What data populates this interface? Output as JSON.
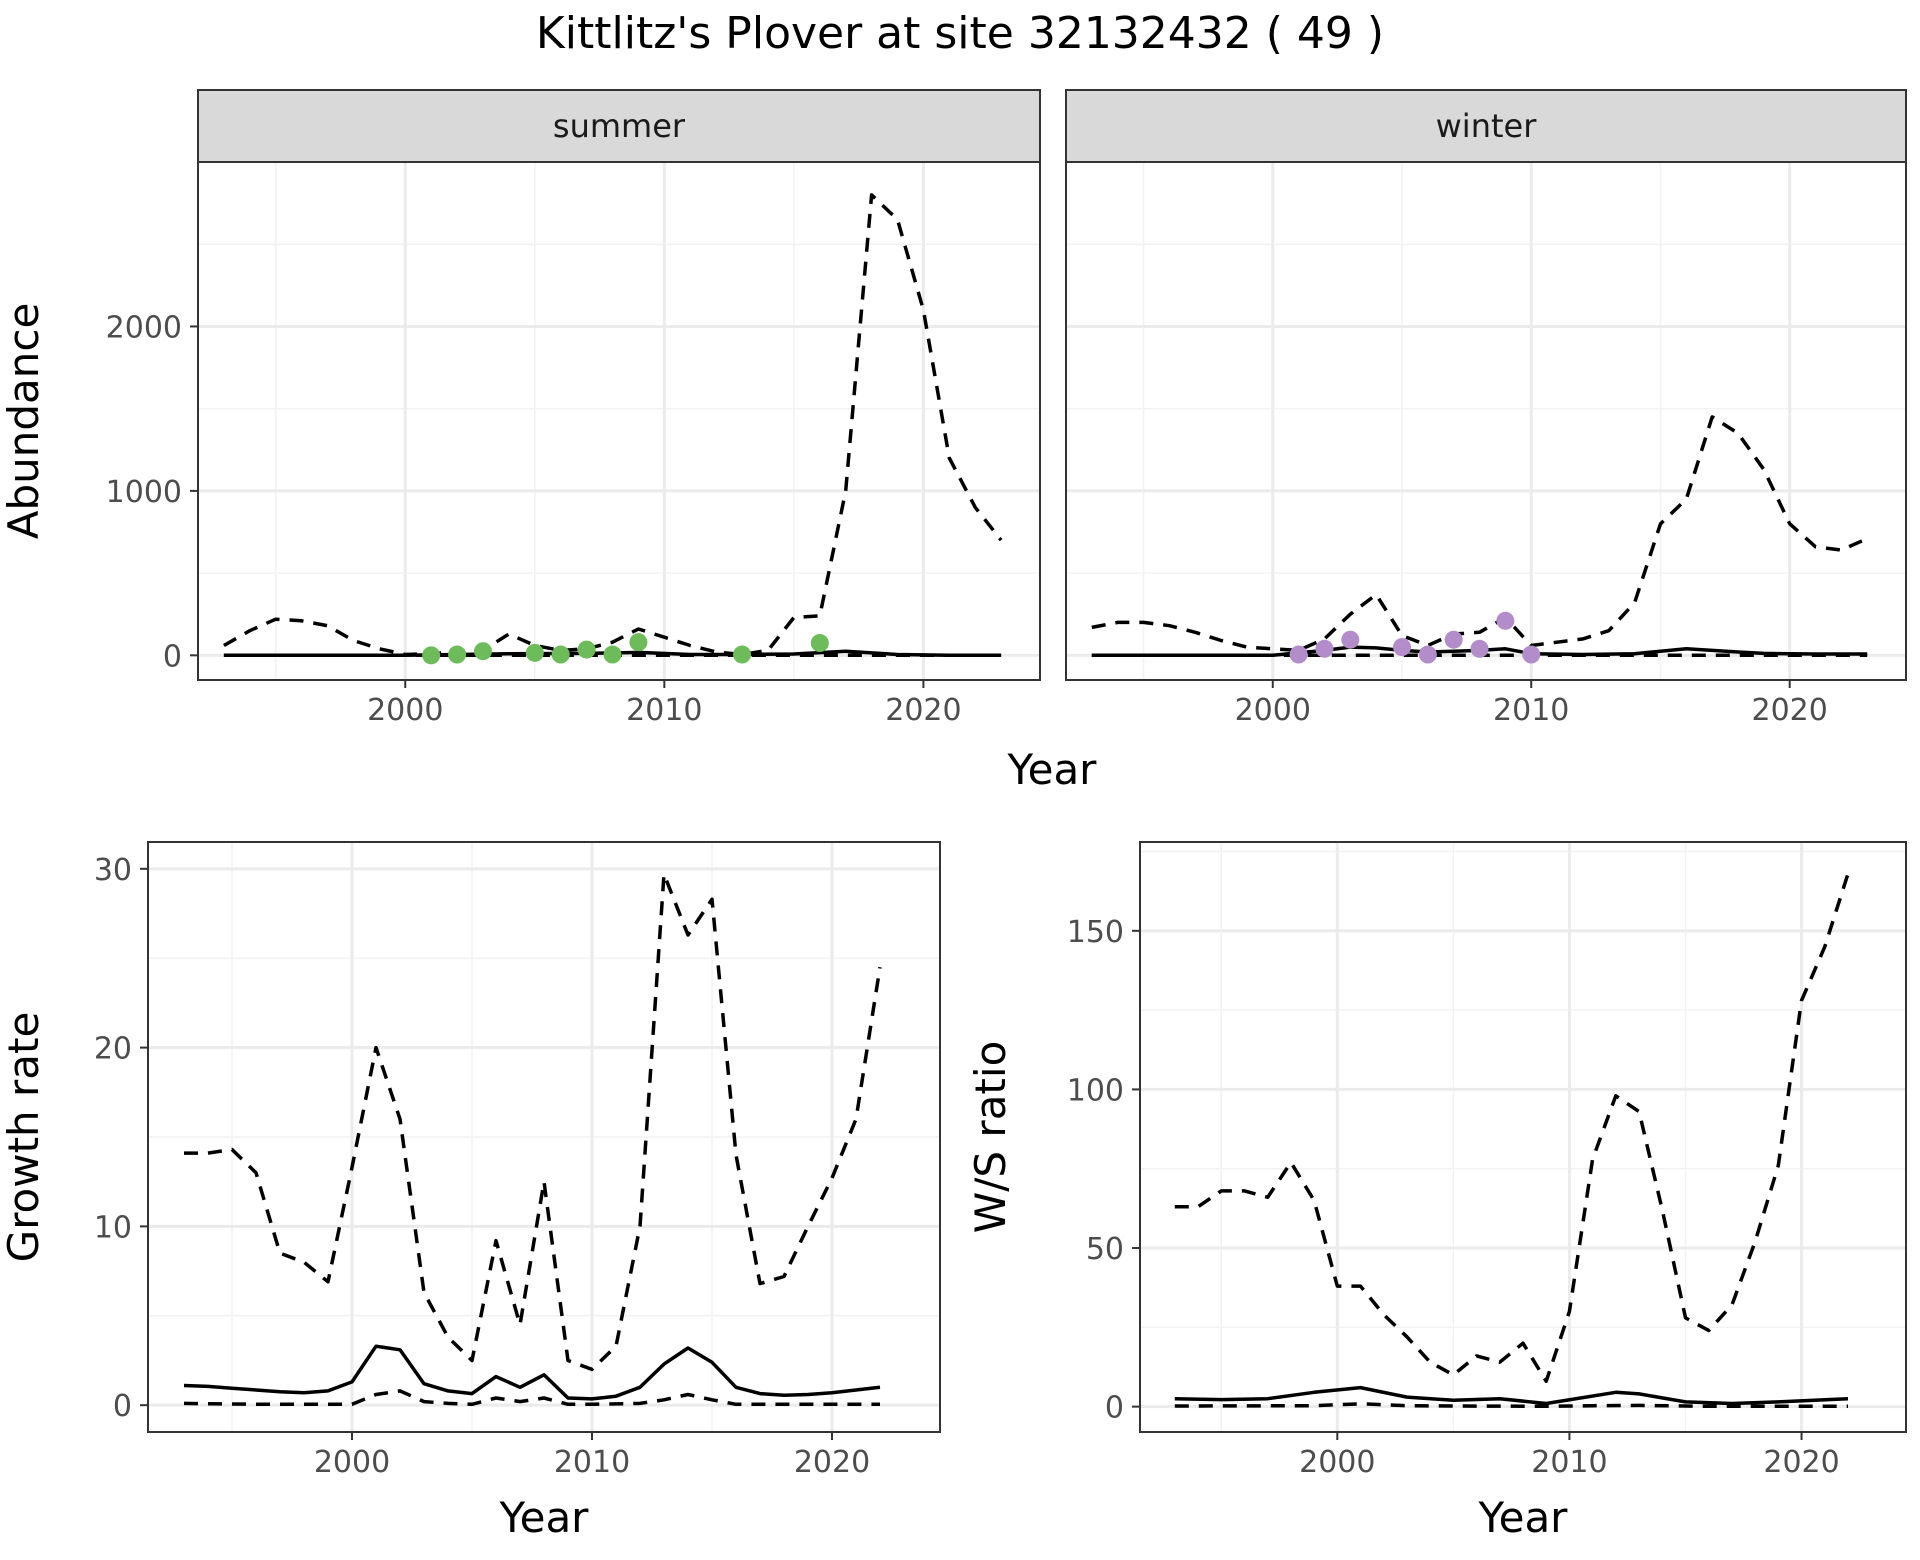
{
  "title": "Kittlitz's Plover at site 32132432 ( 49 )",
  "colors": {
    "summer_points": "#6dbb5a",
    "winter_points": "#b38dc9",
    "line": "#000000"
  },
  "chart_data": [
    {
      "type": "line",
      "facet": "summer",
      "xlabel": "Year",
      "ylabel": "Abundance",
      "xlim": [
        1992,
        2024.5
      ],
      "ylim": [
        -150,
        3000
      ],
      "xticks": [
        2000,
        2010,
        2020
      ],
      "yticks": [
        0,
        1000,
        2000
      ],
      "series": [
        {
          "style": "solid",
          "x": [
            1993,
            1995,
            2000,
            2004,
            2007,
            2009,
            2011,
            2013,
            2015,
            2017,
            2019,
            2021,
            2023
          ],
          "y": [
            0,
            0,
            0,
            10,
            12,
            18,
            5,
            5,
            8,
            25,
            5,
            0,
            0
          ]
        },
        {
          "style": "dashed",
          "x": [
            1993,
            1994,
            1995,
            1996,
            1997,
            1998,
            1999,
            2000,
            2001,
            2002,
            2003,
            2004,
            2005,
            2006,
            2007,
            2008,
            2009,
            2010,
            2011,
            2012,
            2013,
            2014,
            2015,
            2016,
            2017,
            2018,
            2019,
            2020,
            2021,
            2022,
            2023
          ],
          "y": [
            60,
            150,
            220,
            210,
            180,
            90,
            40,
            5,
            10,
            20,
            30,
            130,
            60,
            30,
            40,
            80,
            160,
            110,
            60,
            20,
            5,
            30,
            230,
            240,
            1000,
            2800,
            2650,
            2100,
            1200,
            900,
            700
          ]
        },
        {
          "style": "dashed-low",
          "x": [
            1993,
            2023
          ],
          "y": [
            0,
            0
          ]
        }
      ],
      "points": {
        "x": [
          2001,
          2002,
          2003,
          2005,
          2006,
          2007,
          2008,
          2009,
          2013,
          2016
        ],
        "y": [
          0,
          5,
          25,
          15,
          5,
          35,
          5,
          80,
          5,
          75
        ]
      }
    },
    {
      "type": "line",
      "facet": "winter",
      "xlabel": "Year",
      "ylabel": "Abundance",
      "xlim": [
        1992,
        2024.5
      ],
      "ylim": [
        -150,
        3000
      ],
      "xticks": [
        2000,
        2010,
        2020
      ],
      "yticks": [
        0,
        1000,
        2000
      ],
      "series": [
        {
          "style": "solid",
          "x": [
            1993,
            1997,
            2000,
            2002,
            2003,
            2004,
            2005,
            2006,
            2007,
            2008,
            2009,
            2010,
            2012,
            2014,
            2015,
            2016,
            2017,
            2018,
            2019,
            2021,
            2023
          ],
          "y": [
            0,
            0,
            0,
            30,
            50,
            45,
            30,
            20,
            25,
            30,
            40,
            10,
            5,
            10,
            25,
            40,
            30,
            20,
            12,
            8,
            8
          ]
        },
        {
          "style": "dashed",
          "x": [
            1993,
            1994,
            1995,
            1996,
            1997,
            1998,
            1999,
            2000,
            2001,
            2002,
            2003,
            2004,
            2005,
            2006,
            2007,
            2008,
            2009,
            2010,
            2011,
            2012,
            2013,
            2014,
            2015,
            2016,
            2017,
            2018,
            2019,
            2020,
            2021,
            2022,
            2023
          ],
          "y": [
            170,
            200,
            200,
            180,
            140,
            90,
            50,
            40,
            30,
            100,
            250,
            370,
            120,
            60,
            130,
            140,
            230,
            60,
            80,
            100,
            150,
            320,
            800,
            950,
            1450,
            1350,
            1130,
            800,
            660,
            640,
            710
          ]
        },
        {
          "style": "dashed-low",
          "x": [
            1993,
            2023
          ],
          "y": [
            0,
            0
          ]
        }
      ],
      "points": {
        "x": [
          2001,
          2002,
          2003,
          2005,
          2006,
          2007,
          2008,
          2009,
          2010
        ],
        "y": [
          5,
          40,
          95,
          50,
          5,
          95,
          40,
          210,
          5
        ]
      }
    },
    {
      "type": "line",
      "xlabel": "Year",
      "ylabel": "Growth rate",
      "xlim": [
        1991.5,
        2024.5
      ],
      "ylim": [
        -1.5,
        31.5
      ],
      "xticks": [
        2000,
        2010,
        2020
      ],
      "yticks": [
        0,
        10,
        20,
        30
      ],
      "series": [
        {
          "style": "solid",
          "x": [
            1993,
            1994,
            1995,
            1996,
            1997,
            1998,
            1999,
            2000,
            2001,
            2002,
            2003,
            2004,
            2005,
            2006,
            2007,
            2008,
            2009,
            2010,
            2011,
            2012,
            2013,
            2014,
            2015,
            2016,
            2017,
            2018,
            2019,
            2020,
            2021,
            2022
          ],
          "y": [
            1.1,
            1.05,
            0.95,
            0.85,
            0.75,
            0.7,
            0.8,
            1.3,
            3.3,
            3.1,
            1.2,
            0.8,
            0.65,
            1.6,
            1.0,
            1.7,
            0.4,
            0.35,
            0.5,
            1.0,
            2.3,
            3.2,
            2.4,
            1.0,
            0.65,
            0.55,
            0.6,
            0.7,
            0.85,
            1.0
          ]
        },
        {
          "style": "dashed",
          "x": [
            1993,
            1994,
            1995,
            1996,
            1997,
            1998,
            1999,
            2000,
            2001,
            2002,
            2003,
            2004,
            2005,
            2006,
            2007,
            2008,
            2009,
            2010,
            2011,
            2012,
            2013,
            2014,
            2015,
            2016,
            2017,
            2018,
            2019,
            2020,
            2021,
            2022
          ],
          "y": [
            14.1,
            14.1,
            14.3,
            13.0,
            8.5,
            8.0,
            6.9,
            13.3,
            20.0,
            16.0,
            6.3,
            3.8,
            2.5,
            9.2,
            4.5,
            12.5,
            2.5,
            2.0,
            3.3,
            10.0,
            29.7,
            26.3,
            28.3,
            14.0,
            6.8,
            7.2,
            10.0,
            12.7,
            16.0,
            24.5
          ]
        },
        {
          "style": "dashed-low",
          "x": [
            1993,
            1996,
            2000,
            2001,
            2002,
            2003,
            2004,
            2005,
            2006,
            2007,
            2008,
            2009,
            2010,
            2012,
            2013,
            2014,
            2015,
            2016,
            2018,
            2022
          ],
          "y": [
            0.1,
            0.05,
            0.05,
            0.6,
            0.8,
            0.2,
            0.1,
            0.05,
            0.4,
            0.2,
            0.4,
            0.05,
            0.05,
            0.1,
            0.3,
            0.6,
            0.3,
            0.05,
            0.05,
            0.05
          ]
        }
      ]
    },
    {
      "type": "line",
      "xlabel": "Year",
      "ylabel": "W/S ratio",
      "xlim": [
        1991.5,
        2024.5
      ],
      "ylim": [
        -8,
        178
      ],
      "xticks": [
        2000,
        2010,
        2020
      ],
      "yticks": [
        0,
        50,
        100,
        150
      ],
      "series": [
        {
          "style": "solid",
          "x": [
            1993,
            1995,
            1997,
            1999,
            2001,
            2003,
            2005,
            2007,
            2009,
            2012,
            2013,
            2015,
            2017,
            2019,
            2022
          ],
          "y": [
            2.5,
            2.2,
            2.5,
            4.5,
            6,
            3,
            2,
            2.5,
            1,
            4.5,
            4,
            1.5,
            1,
            1.5,
            2.5
          ]
        },
        {
          "style": "dashed",
          "x": [
            1993,
            1994,
            1995,
            1996,
            1997,
            1998,
            1999,
            2000,
            2001,
            2002,
            2003,
            2004,
            2005,
            2006,
            2007,
            2008,
            2009,
            2010,
            2011,
            2012,
            2013,
            2014,
            2015,
            2016,
            2017,
            2018,
            2019,
            2020,
            2021,
            2022
          ],
          "y": [
            63,
            63,
            68,
            68,
            66,
            77,
            65,
            38,
            38,
            29,
            22,
            14,
            10,
            16,
            14,
            20,
            8,
            30,
            78,
            98,
            93,
            62,
            28,
            24,
            32,
            52,
            76,
            128,
            145,
            168
          ]
        },
        {
          "style": "dashed-low",
          "x": [
            1993,
            1999,
            2001,
            2003,
            2005,
            2009,
            2011,
            2013,
            2016,
            2018,
            2022
          ],
          "y": [
            0.2,
            0.3,
            0.9,
            0.3,
            0.2,
            0.1,
            0.3,
            0.4,
            0.1,
            0.1,
            0.1
          ]
        }
      ]
    }
  ]
}
